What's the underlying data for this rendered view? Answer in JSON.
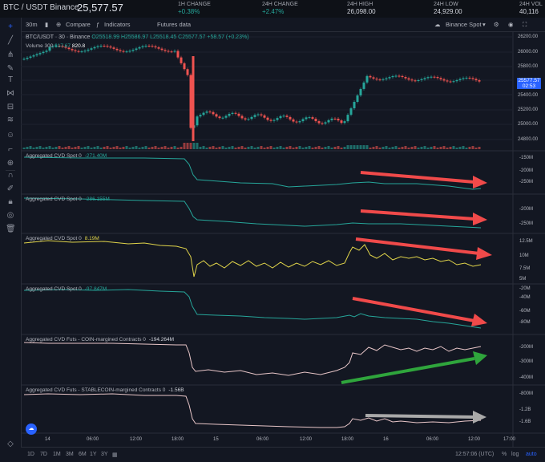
{
  "header": {
    "symbol": "BTC / USDT Binance",
    "price": "25,577.57",
    "stats": [
      {
        "label": "1H CHANGE",
        "value": "+0.38%"
      },
      {
        "label": "24H CHANGE",
        "value": "+2.47%"
      },
      {
        "label": "24H HIGH",
        "value": "26,098.00"
      },
      {
        "label": "24H LOW",
        "value": "24,929.00"
      },
      {
        "label": "24H VOL",
        "value": "40,116"
      }
    ]
  },
  "toolbar": {
    "interval": "30m",
    "compare": "Compare",
    "indicators": "Indicators",
    "futures": "Futures data",
    "source": "Binance Spot"
  },
  "main": {
    "legend": "BTC/USDT · 30 · Binance",
    "ohlc": "O25518.99 H25586.97 L25518.45 C25577.57 +58.57 (+0.23%)",
    "volume_label": "Volume 300",
    "volume_val1": "617.67",
    "volume_val2": "820.8",
    "price_axis": [
      "26200.00",
      "26000.00",
      "25800.00",
      "25600.00",
      "25400.00",
      "25200.00",
      "25000.00",
      "24800.00"
    ],
    "last_price": "25577.57",
    "countdown": "02:53"
  },
  "panels": [
    {
      "label": "Aggregated CVD Spot 0",
      "value": "-271.40M",
      "value_color": "#26a69a",
      "line_color": "#26a69a",
      "axis": [
        "-150M",
        "-200M",
        "-250M"
      ]
    },
    {
      "label": "Aggregated CVD Spot 0",
      "value": "-286.155M",
      "value_color": "#26a69a",
      "line_color": "#26a69a",
      "axis": [
        "-200M",
        "-250M"
      ]
    },
    {
      "label": "Aggregated CVD Spot 0",
      "value": "8.19M",
      "value_color": "#e0d44a",
      "line_color": "#e0d44a",
      "axis": [
        "12.5M",
        "10M",
        "7.5M",
        "5M"
      ]
    },
    {
      "label": "Aggregated CVD Spot 0",
      "value": "-97.847M",
      "value_color": "#26a69a",
      "line_color": "#26a69a",
      "axis": [
        "-20M",
        "-40M",
        "-60M",
        "-80M"
      ]
    },
    {
      "label": "Aggregated CVD Futs - COIN-margined Contracts 0",
      "value": "-194.264M",
      "value_color": "#d1d4dc",
      "line_color": "#e8c6c8",
      "axis": [
        "-200M",
        "-300M",
        "-400M"
      ]
    },
    {
      "label": "Aggregated CVD Futs - STABLECOIN-margined Contracts 0",
      "value": "-1.56B",
      "value_color": "#d1d4dc",
      "line_color": "#e8c6c8",
      "axis": [
        "-800M",
        "-1.2B",
        "-1.6B"
      ]
    }
  ],
  "time_axis": [
    "14",
    "06:00",
    "12:00",
    "18:00",
    "15",
    "06:00",
    "12:00",
    "18:00",
    "16",
    "06:00",
    "12:00",
    "17:00"
  ],
  "bottom": {
    "ranges": [
      "1D",
      "7D",
      "1M",
      "3M",
      "6M",
      "1Y",
      "3Y"
    ],
    "clock": "12:57:06 (UTC)",
    "scale_pct": "%",
    "scale_log": "log",
    "scale_auto": "auto"
  }
}
